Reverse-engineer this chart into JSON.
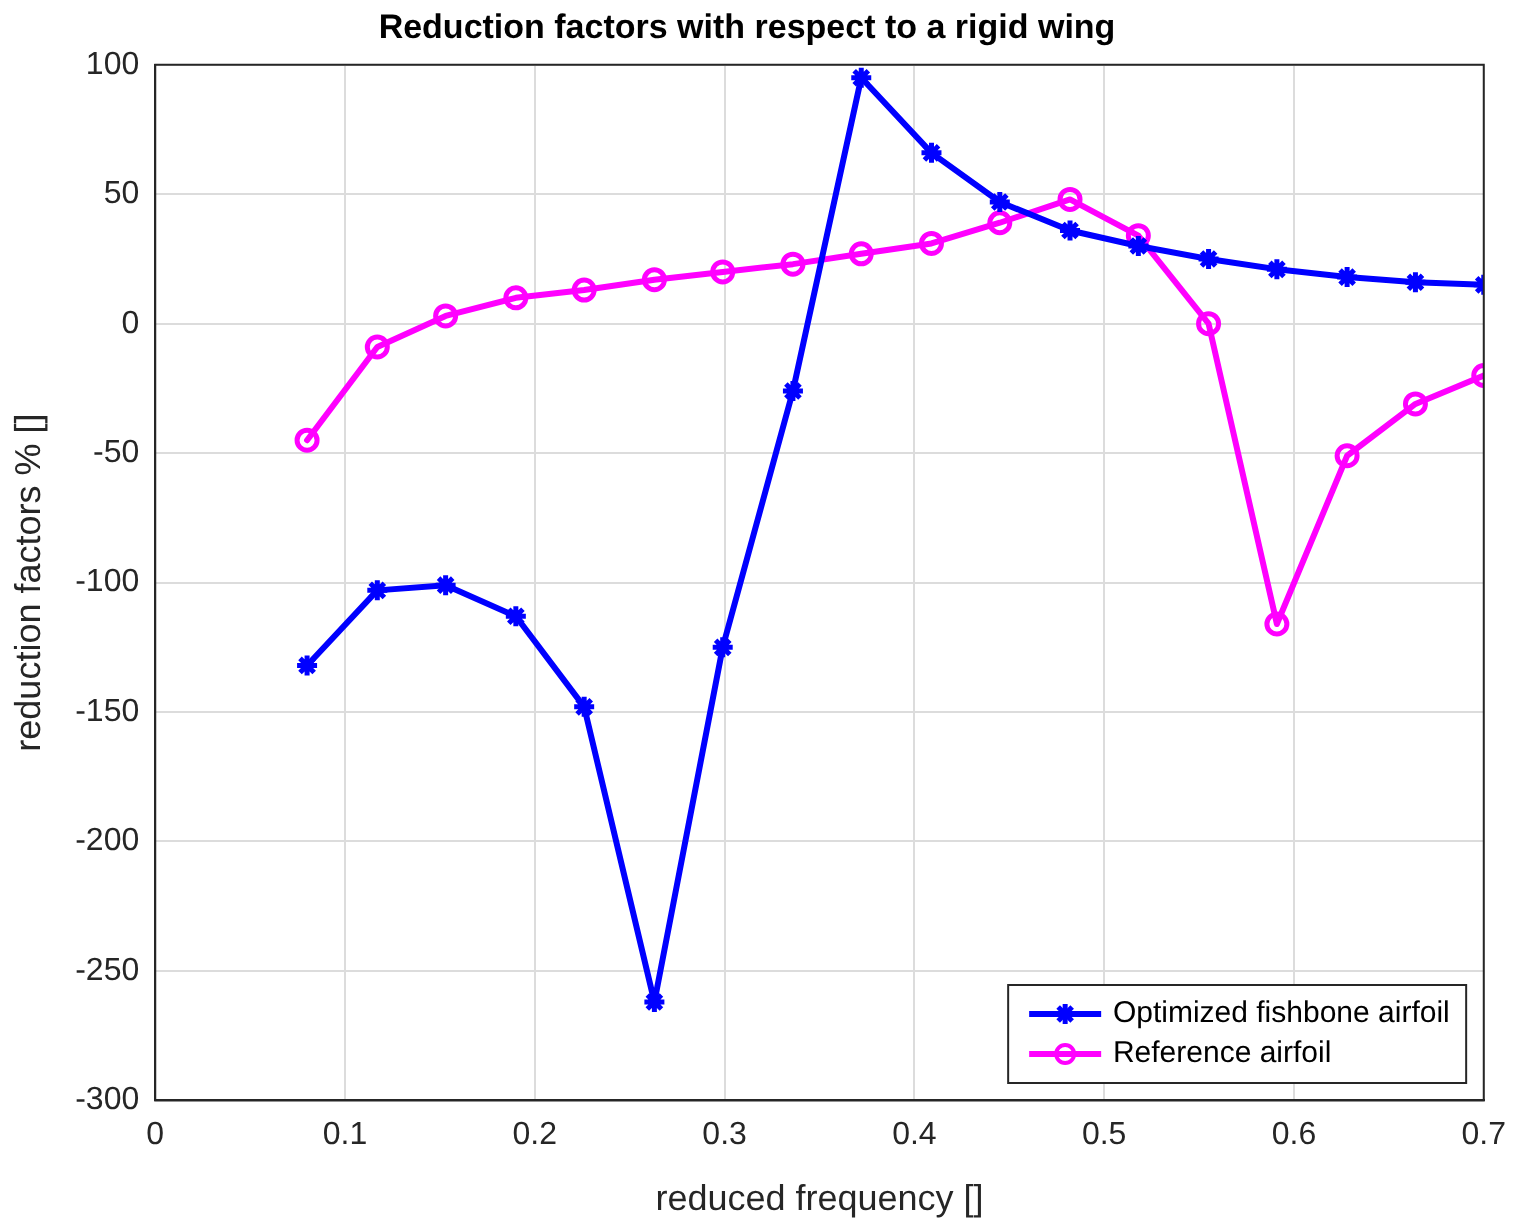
{
  "chart_data": {
    "type": "line",
    "title": "Reduction factors with respect to a rigid wing",
    "xlabel": "reduced frequency []",
    "ylabel": "reduction factors % []",
    "x": [
      0.08,
      0.117,
      0.153,
      0.19,
      0.226,
      0.263,
      0.299,
      0.336,
      0.372,
      0.409,
      0.445,
      0.482,
      0.518,
      0.555,
      0.591,
      0.628,
      0.664,
      0.7
    ],
    "series": [
      {
        "name": "Optimized fishbone airfoil",
        "color": "#0000ff",
        "marker": "cross",
        "values": [
          -132,
          -103,
          -101,
          -113,
          -148,
          -262,
          -125,
          -26,
          95,
          66,
          47,
          36,
          30,
          25,
          21,
          18,
          16,
          15
        ]
      },
      {
        "name": "Reference airfoil",
        "color": "#ff00ff",
        "marker": "circle",
        "values": [
          -45,
          -9,
          3,
          10,
          13,
          17,
          20,
          23,
          27,
          31,
          39,
          48,
          34,
          0,
          -116,
          -51,
          -31,
          -20
        ]
      }
    ],
    "xlim": [
      0,
      0.7
    ],
    "xticks": [
      0,
      0.1,
      0.2,
      0.3,
      0.4,
      0.5,
      0.6,
      0.7
    ],
    "ylim": [
      -300,
      100
    ],
    "yticks": [
      -300,
      -250,
      -200,
      -150,
      -100,
      -50,
      0,
      50,
      100
    ],
    "grid": true,
    "legend": "bottom right",
    "line_style": "solid"
  }
}
